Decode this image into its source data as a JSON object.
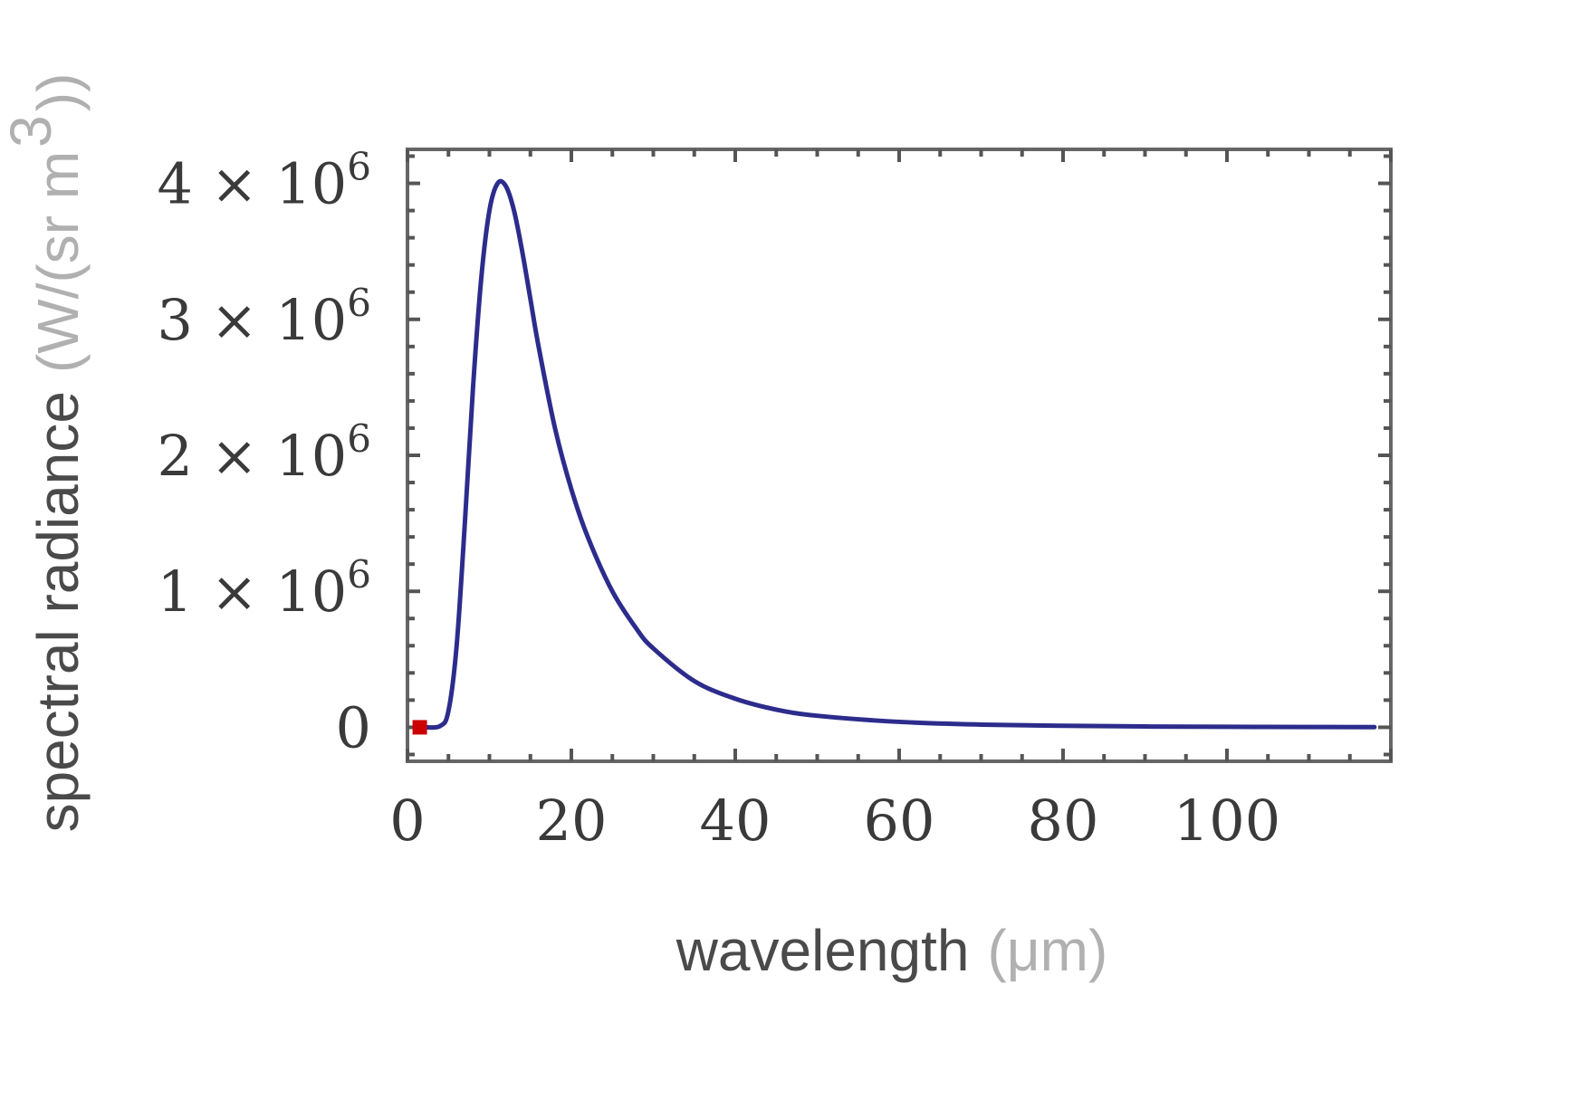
{
  "chart_data": {
    "type": "line",
    "xlabel": "wavelength",
    "xlabel_unit": "(μm)",
    "ylabel": "spectral radiance",
    "ylabel_unit": "(W/(sr m",
    "ylabel_unit_exp": "3",
    "ylabel_unit_close": "))",
    "xlim": [
      0,
      120
    ],
    "ylim": [
      -250000,
      4250000
    ],
    "x_ticks": [
      {
        "value": 0,
        "label": "0"
      },
      {
        "value": 20,
        "label": "20"
      },
      {
        "value": 40,
        "label": "40"
      },
      {
        "value": 60,
        "label": "60"
      },
      {
        "value": 80,
        "label": "80"
      },
      {
        "value": 100,
        "label": "100"
      }
    ],
    "y_ticks": [
      {
        "value": 0,
        "label": "0",
        "mantissa": "",
        "exponent": ""
      },
      {
        "value": 1000000,
        "label": "1 × 10^6",
        "mantissa": "1 × 10",
        "exponent": "6"
      },
      {
        "value": 2000000,
        "label": "2 × 10^6",
        "mantissa": "2 × 10",
        "exponent": "6"
      },
      {
        "value": 3000000,
        "label": "3 × 10^6",
        "mantissa": "3 × 10",
        "exponent": "6"
      },
      {
        "value": 4000000,
        "label": "4 × 10^6",
        "mantissa": "4 × 10",
        "exponent": "6"
      }
    ],
    "series": [
      {
        "color": "#2c2c8c",
        "points": [
          [
            2,
            0
          ],
          [
            4,
            10000
          ],
          [
            5,
            120000
          ],
          [
            6,
            600000
          ],
          [
            7,
            1500000
          ],
          [
            8,
            2500000
          ],
          [
            9,
            3300000
          ],
          [
            10,
            3800000
          ],
          [
            11,
            4000000
          ],
          [
            12,
            3980000
          ],
          [
            13,
            3800000
          ],
          [
            14,
            3500000
          ],
          [
            15,
            3150000
          ],
          [
            16,
            2800000
          ],
          [
            18,
            2200000
          ],
          [
            20,
            1750000
          ],
          [
            22,
            1400000
          ],
          [
            25,
            1000000
          ],
          [
            28,
            720000
          ],
          [
            30,
            580000
          ],
          [
            35,
            340000
          ],
          [
            40,
            210000
          ],
          [
            45,
            130000
          ],
          [
            50,
            85000
          ],
          [
            60,
            40000
          ],
          [
            70,
            20000
          ],
          [
            80,
            11000
          ],
          [
            90,
            6000
          ],
          [
            100,
            3500
          ],
          [
            110,
            2000
          ],
          [
            118,
            1200
          ]
        ]
      }
    ],
    "markers": [
      {
        "x": 1.5,
        "y": 0,
        "color": "#cc0000"
      }
    ],
    "grid": false,
    "frame": true
  }
}
